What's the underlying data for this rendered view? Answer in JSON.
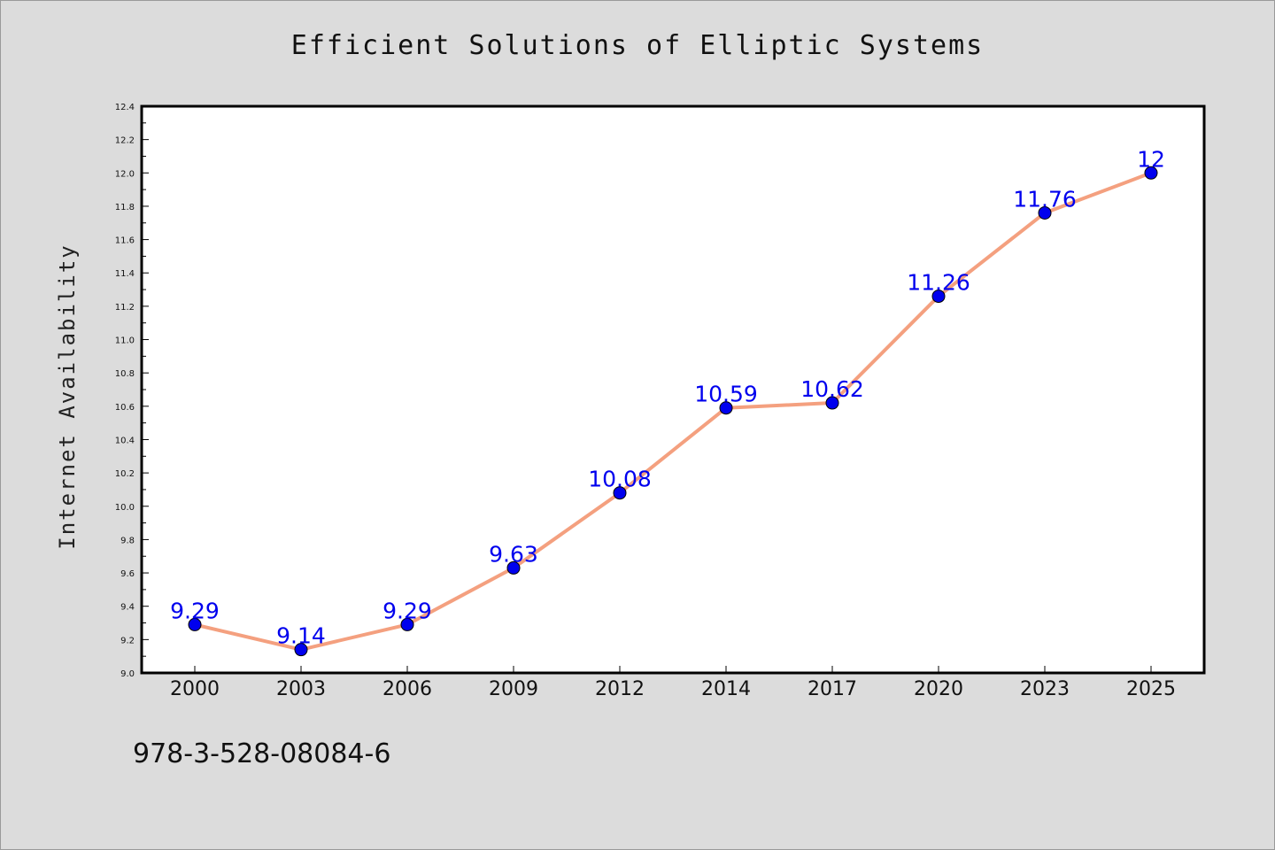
{
  "footer_code": "978-3-528-08084-6",
  "colors": {
    "background": "#dcdcdc",
    "plot_background": "#ffffff",
    "line": "#f4a07f",
    "marker": "#0000ee",
    "data_label": "#0000ee"
  },
  "chart_data": {
    "type": "line",
    "title": "Efficient Solutions of Elliptic Systems",
    "xlabel": "",
    "ylabel": "Internet Availability",
    "categories": [
      "2000",
      "2003",
      "2006",
      "2009",
      "2012",
      "2014",
      "2017",
      "2020",
      "2023",
      "2025"
    ],
    "series": [
      {
        "values": [
          9.29,
          9.14,
          9.29,
          9.63,
          10.08,
          10.59,
          10.62,
          11.26,
          11.76,
          12
        ]
      }
    ],
    "data_labels": [
      "9.29",
      "9.14",
      "9.29",
      "9.63",
      "10.08",
      "10.59",
      "10.62",
      "11.26",
      "11.76",
      "12"
    ],
    "ylim": [
      9.0,
      12.4
    ],
    "yticks": [
      "9.0",
      "9.2",
      "9.4",
      "9.6",
      "9.8",
      "10.0",
      "10.2",
      "10.4",
      "10.6",
      "10.8",
      "11.0",
      "11.2",
      "11.4",
      "11.6",
      "11.8",
      "12.0",
      "12.2",
      "12.4"
    ],
    "grid": false,
    "legend": "none"
  }
}
